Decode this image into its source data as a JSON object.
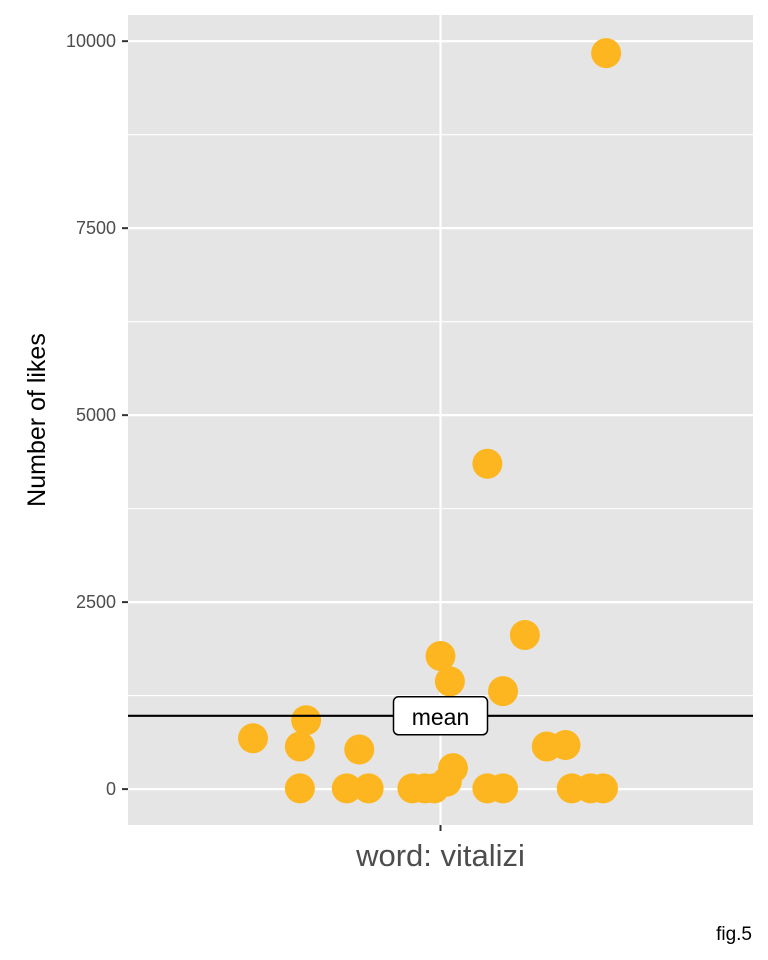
{
  "chart_data": {
    "type": "scatter",
    "geom": "jitter",
    "xlabel": "",
    "ylabel": "Number of likes",
    "categories": [
      "word: vitalizi"
    ],
    "ylim": [
      -480,
      10350
    ],
    "y_ticks": [
      0,
      2500,
      5000,
      7500,
      10000
    ],
    "y_tick_labels": [
      "0",
      "2500",
      "5000",
      "7500",
      "10000"
    ],
    "grid": true,
    "point_color": "#FDB620",
    "panel_color": "#E5E5E5",
    "points": [
      {
        "x": -0.6,
        "y": 680
      },
      {
        "x": -0.43,
        "y": 920
      },
      {
        "x": -0.45,
        "y": 570
      },
      {
        "x": -0.26,
        "y": 530
      },
      {
        "x": -0.45,
        "y": 10
      },
      {
        "x": -0.3,
        "y": 10
      },
      {
        "x": -0.23,
        "y": 10
      },
      {
        "x": -0.09,
        "y": 10
      },
      {
        "x": -0.05,
        "y": 10
      },
      {
        "x": -0.02,
        "y": 10
      },
      {
        "x": 0.02,
        "y": 100
      },
      {
        "x": 0.04,
        "y": 280
      },
      {
        "x": 0.0,
        "y": 1780
      },
      {
        "x": 0.03,
        "y": 1440
      },
      {
        "x": 0.15,
        "y": 4350
      },
      {
        "x": 0.15,
        "y": 10
      },
      {
        "x": 0.2,
        "y": 10
      },
      {
        "x": 0.2,
        "y": 1310
      },
      {
        "x": 0.27,
        "y": 2060
      },
      {
        "x": 0.34,
        "y": 570
      },
      {
        "x": 0.4,
        "y": 590
      },
      {
        "x": 0.42,
        "y": 10
      },
      {
        "x": 0.48,
        "y": 10
      },
      {
        "x": 0.52,
        "y": 10
      },
      {
        "x": 0.53,
        "y": 9840
      }
    ],
    "mean": 980,
    "mean_label": "mean",
    "caption": "fig.5"
  }
}
